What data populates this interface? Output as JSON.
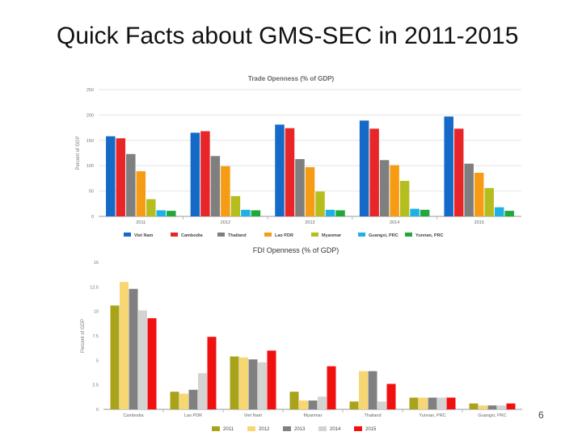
{
  "slide": {
    "title": "Quick Facts about GMS-SEC in 2011-2015",
    "page_number": "6"
  },
  "chart_data": [
    {
      "type": "bar",
      "title": "Trade Openness (% of GDP)",
      "ylabel": "Percent of GDP",
      "xlabel": "",
      "ylim": [
        0,
        250
      ],
      "yticks": [
        0,
        50,
        100,
        150,
        200,
        250
      ],
      "categories": [
        "2011",
        "2012",
        "2013",
        "2014",
        "2015"
      ],
      "legend_position": "bottom",
      "grid": true,
      "series": [
        {
          "name": "Viet Nam",
          "color": "#1569c7",
          "values": [
            158,
            165,
            181,
            189,
            197
          ]
        },
        {
          "name": "Cambodia",
          "color": "#e8262a",
          "values": [
            154,
            168,
            174,
            173,
            173
          ]
        },
        {
          "name": "Thailand",
          "color": "#7f7f7f",
          "values": [
            123,
            119,
            113,
            111,
            104
          ]
        },
        {
          "name": "Lao PDR",
          "color": "#f59b14",
          "values": [
            89,
            99,
            97,
            101,
            86
          ]
        },
        {
          "name": "Myanmar",
          "color": "#b5be1e",
          "values": [
            34,
            40,
            49,
            70,
            56
          ]
        },
        {
          "name": "Guangxi, PRC",
          "color": "#1fb0e6",
          "values": [
            12,
            13,
            13,
            15,
            18
          ]
        },
        {
          "name": "Yunnan, PRC",
          "color": "#20a83c",
          "values": [
            11,
            12,
            12,
            13,
            11
          ]
        }
      ]
    },
    {
      "type": "bar",
      "title": "FDI Openness (% of GDP)",
      "ylabel": "Percent of GDP",
      "xlabel": "",
      "ylim": [
        0,
        15
      ],
      "yticks": [
        "0",
        "2.5",
        "5",
        "7.5",
        "10",
        "12.5",
        "15"
      ],
      "categories": [
        "Cambodia",
        "Lao PDR",
        "Viet Nam",
        "Myanmar",
        "Thailand",
        "Yunnan, PRC",
        "Guangxi, PRC"
      ],
      "legend_position": "bottom",
      "grid": false,
      "series": [
        {
          "name": "2011",
          "color": "#a9a31c",
          "values": [
            10.6,
            1.8,
            5.4,
            1.8,
            0.8,
            1.2,
            0.6
          ]
        },
        {
          "name": "2012",
          "color": "#f6d774",
          "values": [
            13.0,
            1.6,
            5.3,
            0.9,
            3.9,
            1.2,
            0.4
          ]
        },
        {
          "name": "2013",
          "color": "#808080",
          "values": [
            12.3,
            2.0,
            5.1,
            0.9,
            3.9,
            1.2,
            0.4
          ]
        },
        {
          "name": "2014",
          "color": "#d3d3d3",
          "values": [
            10.1,
            3.7,
            4.8,
            1.3,
            0.8,
            1.2,
            0.4
          ]
        },
        {
          "name": "2015",
          "color": "#f01010",
          "values": [
            9.3,
            7.4,
            6.0,
            4.4,
            2.6,
            1.2,
            0.6
          ]
        }
      ]
    }
  ]
}
